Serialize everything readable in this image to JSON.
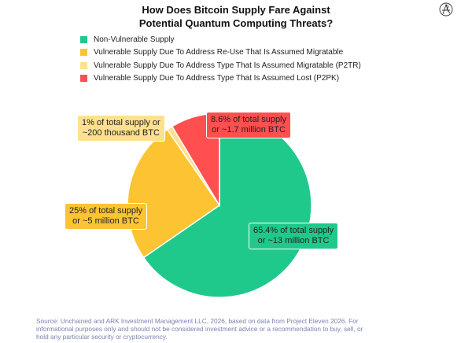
{
  "title_lines": [
    "How Does Bitcoin Supply Fare Against",
    "Potential Quantum Computing Threats?"
  ],
  "logo_icon": "ark-logo-icon",
  "chart_data": {
    "type": "pie",
    "title": "How Does Bitcoin Supply Fare Against Potential Quantum Computing Threats?",
    "legend_position": "top-left",
    "slices": [
      {
        "name": "Non-Vulnerable Supply",
        "value": 65.4,
        "color": "#1ec98b",
        "label": [
          "65.4% of total supply",
          "or ~13 million BTC"
        ]
      },
      {
        "name": "Vulnerable Supply Due To Address Re-Use That Is Assumed Migratable",
        "value": 25,
        "color": "#fcc433",
        "label": [
          "25% of total supply",
          "or ~5 million BTC"
        ]
      },
      {
        "name": "Vulnerable Supply Due To Address Type That Is Assumed Migratable (P2TR)",
        "value": 1,
        "color": "#fde18e",
        "label": [
          "1% of total supply or",
          "~200 thousand BTC"
        ]
      },
      {
        "name": "Vulnerable Supply Due To Address Type That Is Assumed Lost (P2PK)",
        "value": 8.6,
        "color": "#ff4f4f",
        "label": [
          "8.6% of total supply",
          "or ~1.7 million BTC"
        ]
      }
    ]
  },
  "source": "Source: Unchained and ARK Investment Management LLC, 2026, based on data from Project Eleven 2026. For informational purposes only and should not be considered investment advice or a recommendation to buy, sell, or hold any particular security or cryptocurrency."
}
